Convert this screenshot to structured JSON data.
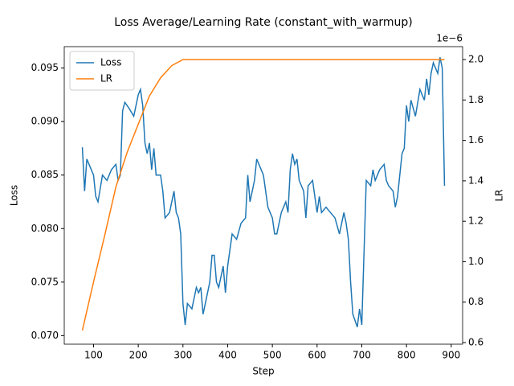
{
  "chart_data": {
    "type": "line",
    "title": "Loss Average/Learning Rate (constant_with_warmup)",
    "x_label": "Step",
    "y_label": "Loss",
    "y2_label": "LR",
    "y2_offset_label": "1e−6",
    "xlim": [
      34.5,
      925.5
    ],
    "xticks": [
      100,
      200,
      300,
      400,
      500,
      600,
      700,
      800,
      900
    ],
    "ylim": [
      0.0692,
      0.097
    ],
    "yticks": [
      {
        "value": 0.07,
        "label": "0.070"
      },
      0.075,
      {
        "value": 0.08,
        "label": "0.080"
      },
      0.085,
      {
        "value": 0.09,
        "label": "0.090"
      },
      0.095
    ],
    "y2lim": [
      0.592,
      2.064
    ],
    "y2ticks": [
      0.6,
      0.8,
      {
        "value": 1,
        "label": "1.0"
      },
      1.2,
      1.4,
      1.6,
      1.8,
      {
        "value": 2,
        "label": "2.0"
      }
    ],
    "grid": false,
    "legend": "upper left",
    "series": [
      {
        "name": "Loss",
        "color": "#1f77b4",
        "axis": "y",
        "x": [
          75,
          80,
          85,
          90,
          100,
          105,
          110,
          120,
          130,
          140,
          150,
          155,
          160,
          165,
          170,
          180,
          190,
          200,
          205,
          210,
          215,
          220,
          225,
          230,
          235,
          240,
          250,
          255,
          260,
          270,
          280,
          285,
          290,
          295,
          300,
          305,
          310,
          320,
          330,
          335,
          340,
          345,
          350,
          360,
          365,
          370,
          375,
          380,
          390,
          395,
          400,
          410,
          420,
          430,
          440,
          445,
          450,
          460,
          465,
          470,
          480,
          490,
          500,
          505,
          510,
          520,
          530,
          535,
          540,
          545,
          550,
          555,
          560,
          570,
          575,
          580,
          590,
          600,
          605,
          610,
          620,
          630,
          640,
          650,
          660,
          665,
          670,
          675,
          680,
          690,
          695,
          700,
          710,
          720,
          725,
          730,
          740,
          750,
          755,
          760,
          770,
          775,
          780,
          790,
          795,
          800,
          805,
          810,
          820,
          830,
          840,
          845,
          850,
          855,
          860,
          870,
          875,
          880,
          885
        ],
        "values": [
          0.0876,
          0.0835,
          0.0865,
          0.086,
          0.085,
          0.083,
          0.0825,
          0.085,
          0.0845,
          0.0855,
          0.086,
          0.0845,
          0.085,
          0.091,
          0.0918,
          0.0912,
          0.0905,
          0.0925,
          0.093,
          0.0915,
          0.088,
          0.087,
          0.088,
          0.0855,
          0.0875,
          0.085,
          0.085,
          0.0835,
          0.081,
          0.0815,
          0.0835,
          0.0815,
          0.081,
          0.0795,
          0.073,
          0.071,
          0.073,
          0.0725,
          0.0745,
          0.074,
          0.0745,
          0.072,
          0.073,
          0.075,
          0.0775,
          0.0775,
          0.075,
          0.0745,
          0.0765,
          0.074,
          0.0765,
          0.0795,
          0.079,
          0.0805,
          0.081,
          0.085,
          0.0825,
          0.0845,
          0.0865,
          0.086,
          0.085,
          0.082,
          0.081,
          0.0795,
          0.0795,
          0.0815,
          0.0825,
          0.0815,
          0.0855,
          0.087,
          0.086,
          0.0865,
          0.0845,
          0.0835,
          0.081,
          0.084,
          0.0845,
          0.0815,
          0.083,
          0.0815,
          0.082,
          0.0815,
          0.081,
          0.0795,
          0.0815,
          0.0805,
          0.079,
          0.075,
          0.072,
          0.0708,
          0.0725,
          0.071,
          0.0845,
          0.084,
          0.0855,
          0.0845,
          0.0855,
          0.086,
          0.0845,
          0.084,
          0.0835,
          0.082,
          0.083,
          0.087,
          0.0875,
          0.0915,
          0.09,
          0.092,
          0.0905,
          0.093,
          0.092,
          0.094,
          0.0925,
          0.0945,
          0.0955,
          0.0945,
          0.096,
          0.095,
          0.084
        ]
      },
      {
        "name": "LR",
        "color": "#ff7f0e",
        "axis": "y2",
        "x": [
          75,
          100,
          125,
          150,
          175,
          200,
          225,
          250,
          275,
          300,
          885
        ],
        "values": [
          0.66,
          0.9,
          1.13,
          1.37,
          1.54,
          1.68,
          1.82,
          1.91,
          1.97,
          2.0,
          2.0
        ]
      }
    ]
  }
}
